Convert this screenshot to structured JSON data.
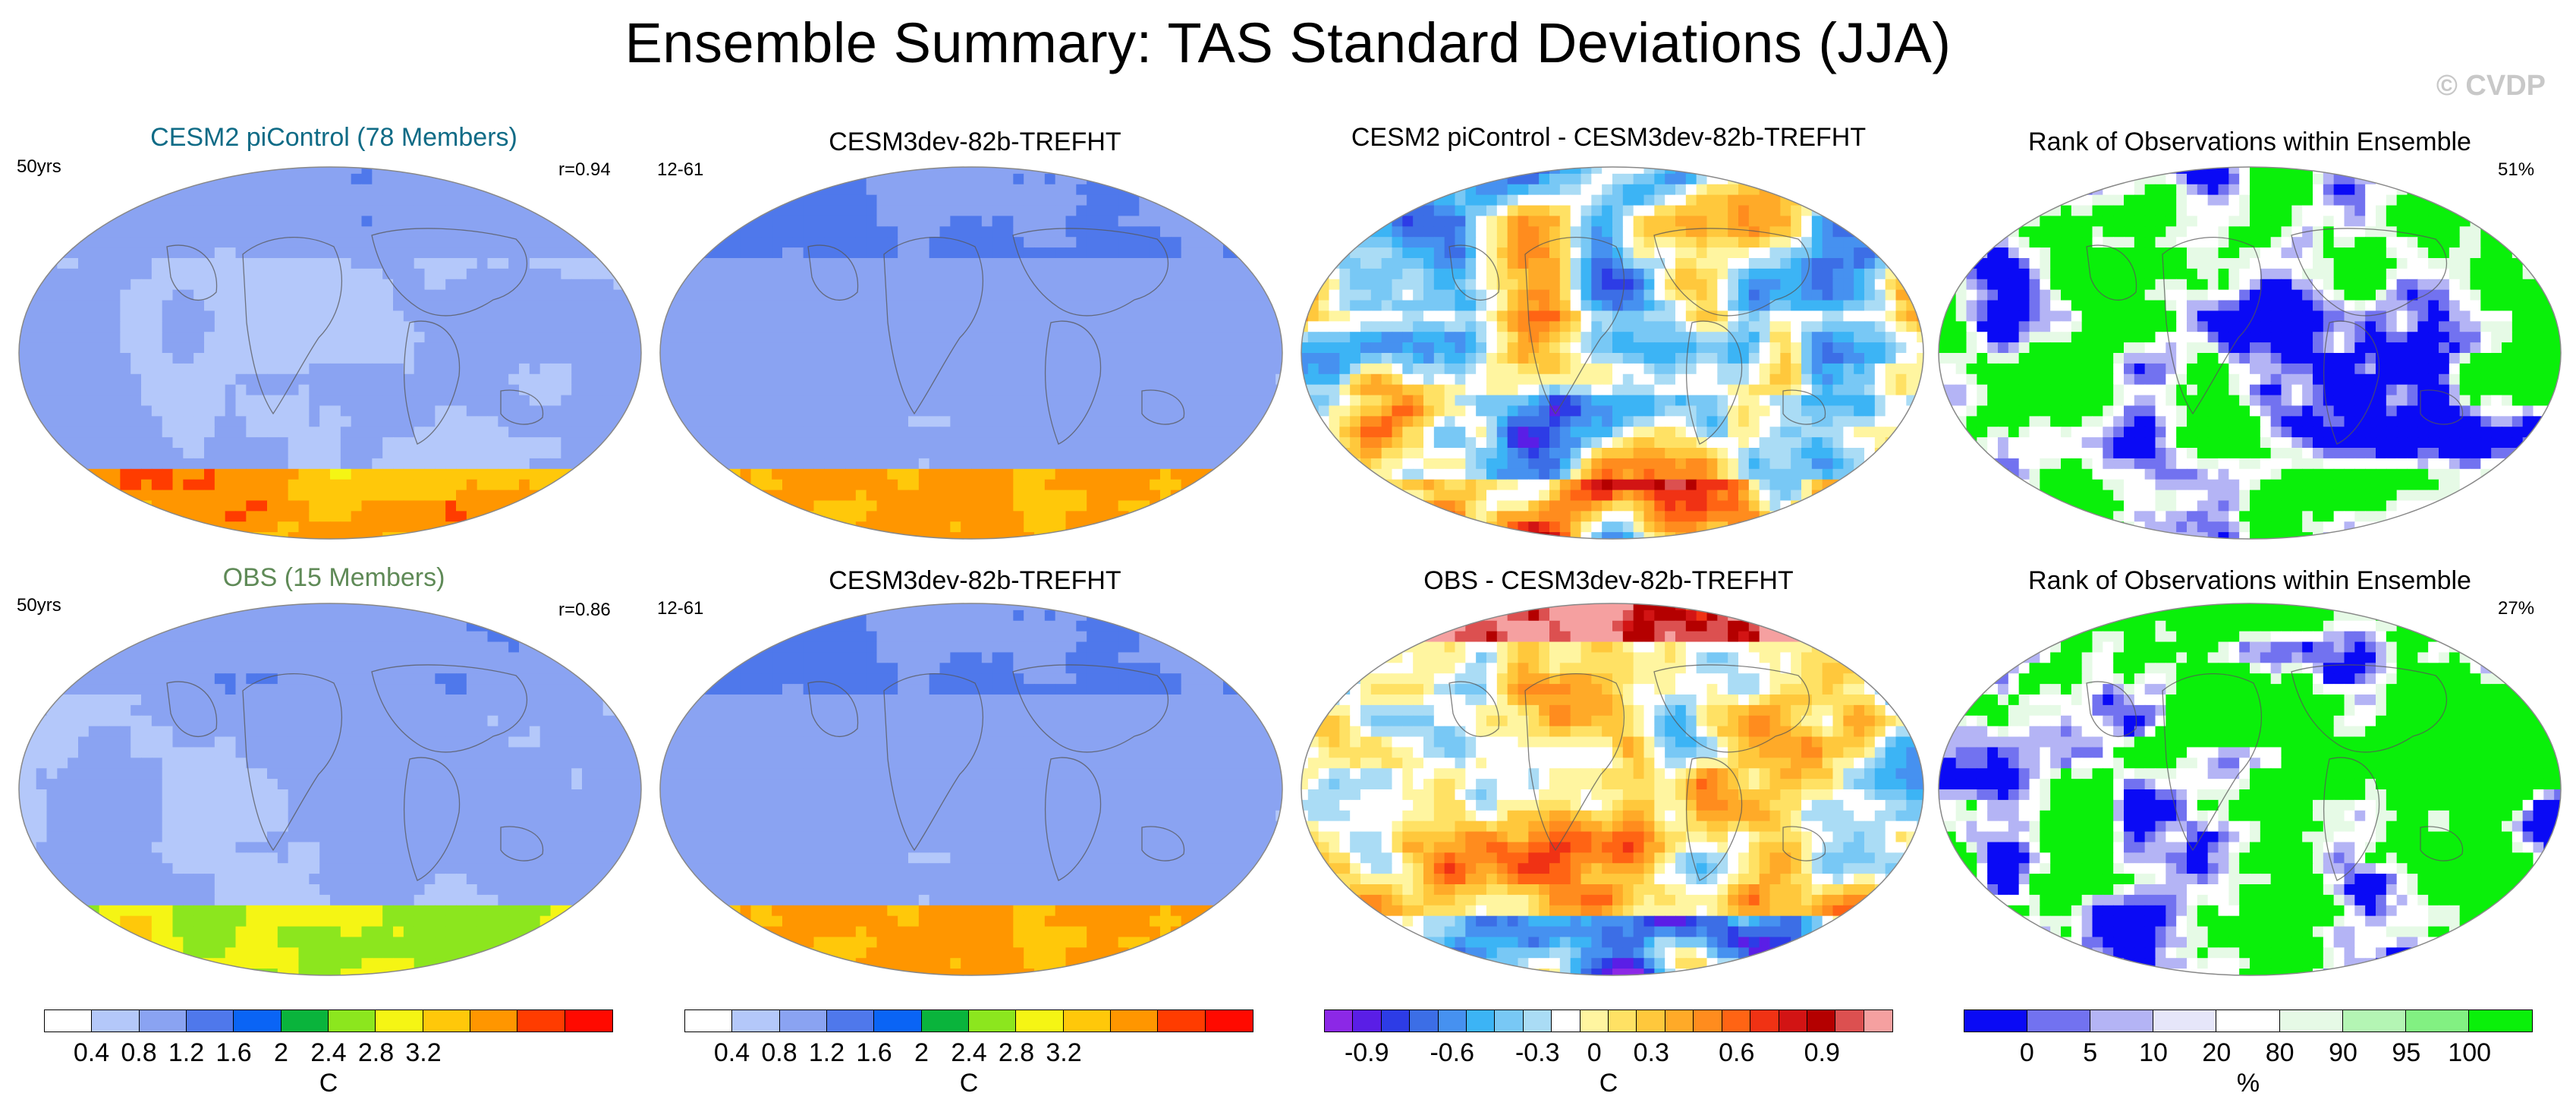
{
  "title": "Ensemble Summary: TAS Standard Deviations (JJA)",
  "watermark": "© CVDP",
  "panels": {
    "p1": {
      "title": "CESM2 piControl (78 Members)",
      "title_color": "#0f6b86",
      "left_label": "50yrs",
      "right_label": "r=0.94",
      "field": "sd_a"
    },
    "p2": {
      "title": "CESM3dev-82b-TREFHT",
      "title_color": "#000000",
      "left_label": "12-61",
      "right_label": "",
      "field": "sd_b"
    },
    "p3": {
      "title": "CESM2 piControl - CESM3dev-82b-TREFHT",
      "title_color": "#000000",
      "left_label": "",
      "right_label": "",
      "field": "diff_a"
    },
    "p4": {
      "title": "Rank of Observations within Ensemble",
      "title_color": "#000000",
      "left_label": "",
      "right_label": "51%",
      "field": "rank_a"
    },
    "p5": {
      "title": "OBS (15 Members)",
      "title_color": "#5f8a57",
      "left_label": "50yrs",
      "right_label": "r=0.86",
      "field": "sd_c"
    },
    "p6": {
      "title": "CESM3dev-82b-TREFHT",
      "title_color": "#000000",
      "left_label": "12-61",
      "right_label": "",
      "field": "sd_b"
    },
    "p7": {
      "title": "OBS - CESM3dev-82b-TREFHT",
      "title_color": "#000000",
      "left_label": "",
      "right_label": "",
      "field": "diff_b"
    },
    "p8": {
      "title": "Rank of Observations within Ensemble",
      "title_color": "#000000",
      "left_label": "",
      "right_label": "27%",
      "field": "rank_b"
    }
  },
  "colorbars": {
    "sd": {
      "unit": "C",
      "colors": [
        "#ffffff",
        "#b4c8fa",
        "#8aa3f2",
        "#4f78eb",
        "#0a64f5",
        "#0ab43c",
        "#8ce61e",
        "#f5f514",
        "#ffc80a",
        "#ff9600",
        "#ff3c00",
        "#ff0a00"
      ],
      "ticks": [
        "0.4",
        "0.8",
        "1.2",
        "1.6",
        "2",
        "2.4",
        "2.8",
        "3.2"
      ]
    },
    "diff": {
      "unit": "C",
      "colors": [
        "#8c28e6",
        "#5a1ee6",
        "#2d3ce6",
        "#3c6ee6",
        "#4691f0",
        "#3cb4f5",
        "#78c8f5",
        "#aadcf5",
        "#ffffff",
        "#fff5a0",
        "#ffe164",
        "#ffc83c",
        "#ffaa28",
        "#ff8c1e",
        "#ff6414",
        "#f03214",
        "#d21414",
        "#b40000",
        "#dc5050",
        "#f5a0a0"
      ],
      "ticks": [
        "-0.9",
        "-0.6",
        "-0.3",
        "0",
        "0.3",
        "0.6",
        "0.9"
      ]
    },
    "rank": {
      "unit": "%",
      "colors": [
        "#0a0af5",
        "#7272f0",
        "#b4b4f5",
        "#e6e6fa",
        "#ffffff",
        "#e6fae6",
        "#b4f5b4",
        "#82f082",
        "#0af00a"
      ],
      "ticks": [
        "0",
        "5",
        "10",
        "20",
        "80",
        "90",
        "95",
        "100"
      ]
    }
  },
  "chart_data": [
    {
      "type": "heatmap",
      "title": "CESM2 piControl (78 Members)",
      "variable": "TAS standard deviation",
      "units": "C",
      "season": "JJA",
      "pattern_correlation": 0.94,
      "period": "50yrs",
      "levels": [
        0.4,
        0.8,
        1.2,
        1.6,
        2,
        2.4,
        2.8,
        3.2
      ]
    },
    {
      "type": "heatmap",
      "title": "CESM3dev-82b-TREFHT",
      "variable": "TAS standard deviation",
      "units": "C",
      "season": "JJA",
      "period": "12-61",
      "levels": [
        0.4,
        0.8,
        1.2,
        1.6,
        2,
        2.4,
        2.8,
        3.2
      ]
    },
    {
      "type": "heatmap",
      "title": "CESM2 piControl - CESM3dev-82b-TREFHT",
      "units": "C",
      "levels": [
        -0.9,
        -0.6,
        -0.3,
        0,
        0.3,
        0.6,
        0.9
      ]
    },
    {
      "type": "heatmap",
      "title": "Rank of Observations within Ensemble",
      "units": "%",
      "summary": "51%",
      "levels": [
        0,
        5,
        10,
        20,
        80,
        90,
        95,
        100
      ]
    },
    {
      "type": "heatmap",
      "title": "OBS (15 Members)",
      "variable": "TAS standard deviation",
      "units": "C",
      "season": "JJA",
      "pattern_correlation": 0.86,
      "period": "50yrs",
      "levels": [
        0.4,
        0.8,
        1.2,
        1.6,
        2,
        2.4,
        2.8,
        3.2
      ]
    },
    {
      "type": "heatmap",
      "title": "CESM3dev-82b-TREFHT",
      "variable": "TAS standard deviation",
      "units": "C",
      "season": "JJA",
      "period": "12-61",
      "levels": [
        0.4,
        0.8,
        1.2,
        1.6,
        2,
        2.4,
        2.8,
        3.2
      ]
    },
    {
      "type": "heatmap",
      "title": "OBS - CESM3dev-82b-TREFHT",
      "units": "C",
      "levels": [
        -0.9,
        -0.6,
        -0.3,
        0,
        0.3,
        0.6,
        0.9
      ]
    },
    {
      "type": "heatmap",
      "title": "Rank of Observations within Ensemble",
      "units": "%",
      "summary": "27%",
      "levels": [
        0,
        5,
        10,
        20,
        80,
        90,
        95,
        100
      ]
    }
  ]
}
